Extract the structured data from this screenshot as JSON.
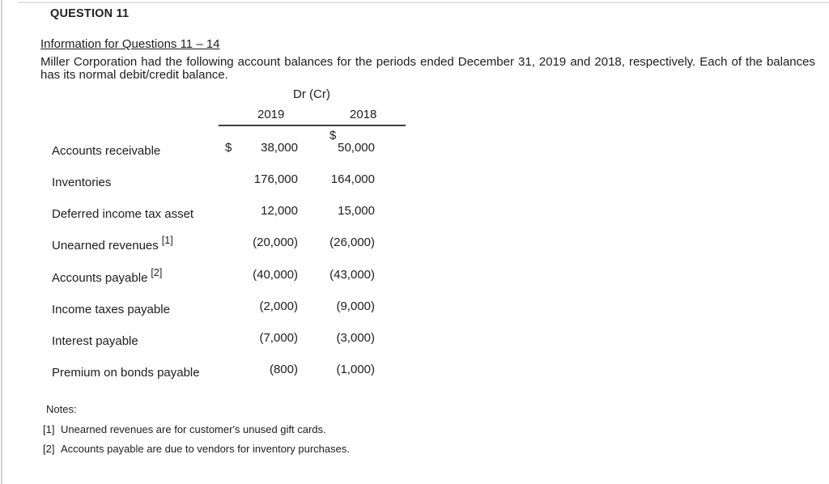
{
  "page": {
    "question_label": "QUESTION 11",
    "info_heading": "Information for Questions 11 – 14",
    "intro_paragraph": "Miller Corporation had the following account balances for the periods ended December 31, 2019 and 2018, respectively. Each of the balances has its normal debit/credit balance."
  },
  "table": {
    "header": "Dr (Cr)",
    "col_2019": "2019",
    "col_2018": "2018",
    "currency_symbol": "$",
    "rows": [
      {
        "label": "Accounts receivable",
        "v2019": "38,000",
        "v2018": "50,000"
      },
      {
        "label": "Inventories",
        "v2019": "176,000",
        "v2018": "164,000"
      },
      {
        "label": "Deferred income tax asset",
        "v2019": "12,000",
        "v2018": "15,000"
      },
      {
        "label": "Unearned revenues",
        "sup": "[1]",
        "v2019": "(20,000)",
        "v2018": "(26,000)"
      },
      {
        "label": "Accounts payable",
        "sup": "[2]",
        "v2019": "(40,000)",
        "v2018": "(43,000)"
      },
      {
        "label": "Income taxes payable",
        "v2019": "(2,000)",
        "v2018": "(9,000)"
      },
      {
        "label": "Interest payable",
        "v2019": "(7,000)",
        "v2018": "(3,000)"
      },
      {
        "label": "Premium on bonds payable",
        "v2019": "(800)",
        "v2018": "(1,000)"
      }
    ]
  },
  "notes": {
    "title": "Notes:",
    "items": [
      {
        "marker": "[1]",
        "text": "Unearned revenues are for customer's unused gift cards."
      },
      {
        "marker": "[2]",
        "text": "Accounts payable are due to vendors for inventory purchases."
      }
    ]
  },
  "colors": {
    "text": "#1d1d1d",
    "table_rule": "#414141",
    "frame_border_left": "#d4d4d4",
    "frame_border_top": "#e4e4e4"
  }
}
